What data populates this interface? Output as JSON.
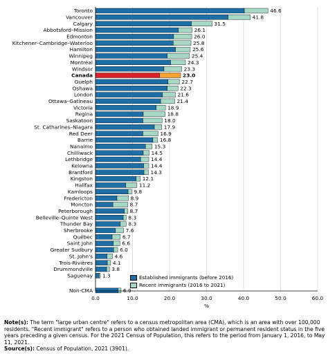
{
  "chart_data": {
    "type": "bar",
    "orientation": "horizontal",
    "stacked": true,
    "categories": [
      "Toronto",
      "Vancouver",
      "Calgary",
      "Abbotsford–Mission",
      "Edmonton",
      "Kitchener–Cambridge–Waterloo",
      "Hamilton",
      "Winnipeg",
      "Montréal",
      "Windsor",
      "Canada",
      "Guelph",
      "Oshawa",
      "London",
      "Ottawa–Gatineau",
      "Victoria",
      "Regina",
      "Saskatoon",
      "St. Catharines–Niagara",
      "Red Deer",
      "Barrie",
      "Nanaimo",
      "Chilliwack",
      "Lethbridge",
      "Kelowna",
      "Brantford",
      "Kingston",
      "Halifax",
      "Kamloops",
      "Fredericton",
      "Moncton",
      "Peterborough",
      "Belleville–Quinte West",
      "Thunder Bay",
      "Sherbrooke",
      "Québec",
      "Saint John",
      "Greater Sudbury",
      "St. John's",
      "Trois-Rivières",
      "Drummondville",
      "Saguenay",
      "Non-CMA"
    ],
    "highlight_category": "Canada",
    "gap_before": "Non-CMA",
    "series": [
      {
        "name": "Established immigrants (before 2016)",
        "values": [
          40.2,
          35.8,
          25.9,
          22.4,
          21.1,
          21.0,
          21.6,
          19.4,
          20.3,
          18.5,
          17.3,
          19.6,
          19.4,
          18.1,
          17.6,
          16.4,
          12.9,
          12.8,
          15.9,
          12.8,
          15.5,
          13.5,
          12.9,
          12.2,
          13.0,
          13.1,
          11.0,
          8.2,
          8.8,
          5.8,
          4.7,
          7.8,
          7.5,
          6.7,
          5.4,
          4.5,
          4.8,
          4.9,
          3.1,
          3.2,
          3.0,
          1.0,
          6.1
        ]
      },
      {
        "name": "Recent immigrants (2016 to 2021)",
        "values": [
          6.4,
          6.0,
          5.6,
          3.7,
          4.9,
          4.8,
          4.0,
          6.0,
          4.0,
          4.8,
          5.7,
          3.1,
          2.9,
          3.5,
          3.8,
          2.5,
          5.9,
          5.2,
          2.0,
          4.1,
          1.3,
          1.8,
          1.6,
          2.2,
          1.4,
          1.2,
          1.1,
          3.0,
          1.0,
          3.1,
          4.0,
          0.9,
          0.8,
          1.6,
          2.2,
          2.2,
          1.8,
          1.1,
          1.5,
          0.9,
          0.8,
          0.3,
          0.8
        ]
      }
    ],
    "totals": [
      "46.6",
      "41.8",
      "31.5",
      "26.1",
      "26.0",
      "25.8",
      "25.6",
      "25.4",
      "24.3",
      "23.3",
      "23.0",
      "22.7",
      "22.3",
      "21.6",
      "21.4",
      "18.9",
      "18.8",
      "18.0",
      "17.9",
      "16.9",
      "16.8",
      "15.3",
      "14.5",
      "14.4",
      "14.4",
      "14.3",
      "12.1",
      "11.2",
      "9.8",
      "8.9",
      "8.7",
      "8.7",
      "8.3",
      "8.3",
      "7.6",
      "6.7",
      "6.6",
      "6.0",
      "4.6",
      "4.1",
      "3.8",
      "1.3",
      "6.9"
    ],
    "x_ticks": [
      "0.0",
      "10.0",
      "20.0",
      "30.0",
      "40.0",
      "50.0",
      "60.0"
    ],
    "xlim": [
      0,
      60
    ],
    "xlabel": "%",
    "colors": {
      "established": "#1d6ea5",
      "recent": "#a7d8c6",
      "canada_established": "#d9222a",
      "canada_recent": "#f4a232",
      "grid": "#cccccc"
    },
    "legend_position": "lower-right"
  },
  "legend": {
    "established": "Established immigrants (before 2016)",
    "recent": "Recent immigrants (2016 to 2021)"
  },
  "notes": {
    "note_label": "Note(s):",
    "note_text": "The term \"large urban centre\" refers to a census metropolitan area (CMA), which is an area with over 100,000 residents. \"Recent immigrant\" refers to a person who obtained landed immigrant or permanent resident status in the five years preceding a given census. For the 2021 Census of Population, this refers to the period from January 1, 2016, to May 11, 2021.",
    "source_label": "Source(s):",
    "source_text": "Census of Population, 2021 (3901)."
  }
}
